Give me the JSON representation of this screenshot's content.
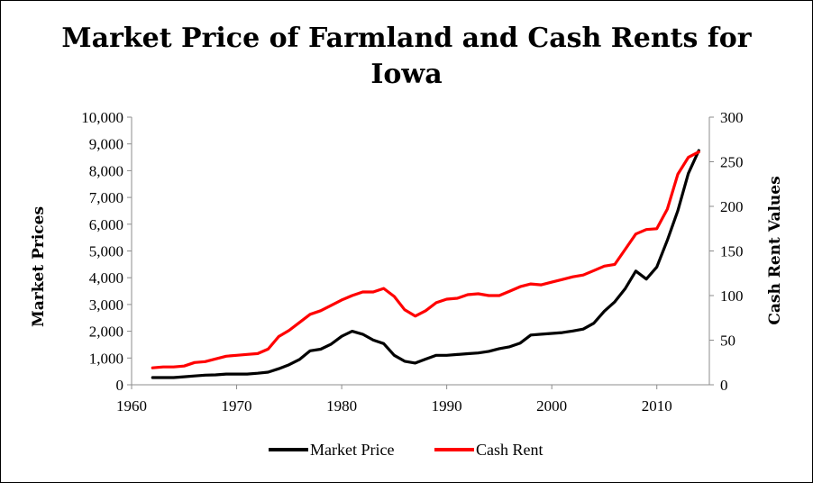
{
  "chart_data": {
    "type": "line",
    "title_line1": "Market Price of Farmland and Cash Rents for",
    "title_line2": "Iowa",
    "ylabel_left": "Market Prices",
    "ylabel_right": "Cash Rent Values",
    "xlim": [
      1960,
      2015
    ],
    "ylim_left": [
      0,
      10000
    ],
    "ylim_right": [
      0,
      300
    ],
    "x_ticks": [
      "1960",
      "1970",
      "1980",
      "1990",
      "2000",
      "2010"
    ],
    "y_left_ticks": [
      "0",
      "1,000",
      "2,000",
      "3,000",
      "4,000",
      "5,000",
      "6,000",
      "7,000",
      "8,000",
      "9,000",
      "10,000"
    ],
    "y_right_ticks": [
      "0",
      "50",
      "100",
      "150",
      "200",
      "250",
      "300"
    ],
    "legend_position": "bottom",
    "grid": false,
    "series": [
      {
        "name": "Market Price",
        "axis": "left",
        "color": "#000000",
        "x": [
          1962,
          1963,
          1964,
          1965,
          1966,
          1967,
          1968,
          1969,
          1970,
          1971,
          1972,
          1973,
          1974,
          1975,
          1976,
          1977,
          1978,
          1979,
          1980,
          1981,
          1982,
          1983,
          1984,
          1985,
          1986,
          1987,
          1988,
          1989,
          1990,
          1991,
          1992,
          1993,
          1994,
          1995,
          1996,
          1997,
          1998,
          1999,
          2000,
          2001,
          2002,
          2003,
          2004,
          2005,
          2006,
          2007,
          2008,
          2009,
          2010,
          2011,
          2012,
          2013,
          2014
        ],
        "y": [
          270,
          270,
          270,
          300,
          330,
          360,
          370,
          400,
          400,
          400,
          430,
          470,
          600,
          750,
          950,
          1270,
          1330,
          1520,
          1810,
          2000,
          1890,
          1670,
          1540,
          1100,
          880,
          810,
          960,
          1100,
          1100,
          1130,
          1160,
          1190,
          1250,
          1350,
          1420,
          1560,
          1860,
          1890,
          1920,
          1950,
          2010,
          2080,
          2300,
          2750,
          3100,
          3600,
          4250,
          3950,
          4400,
          5400,
          6500,
          7900,
          8750
        ]
      },
      {
        "name": "Cash Rent",
        "axis": "right",
        "color": "#ff0000",
        "x": [
          1962,
          1963,
          1964,
          1965,
          1966,
          1967,
          1968,
          1969,
          1970,
          1971,
          1972,
          1973,
          1974,
          1975,
          1976,
          1977,
          1978,
          1979,
          1980,
          1981,
          1982,
          1983,
          1984,
          1985,
          1986,
          1987,
          1988,
          1989,
          1990,
          1991,
          1992,
          1993,
          1994,
          1995,
          1996,
          1997,
          1998,
          1999,
          2000,
          2001,
          2002,
          2003,
          2004,
          2005,
          2006,
          2007,
          2008,
          2009,
          2010,
          2011,
          2012,
          2013,
          2014
        ],
        "y": [
          19,
          20,
          20,
          21,
          25,
          26,
          29,
          32,
          33,
          34,
          35,
          40,
          54,
          61,
          70,
          79,
          83,
          89,
          95,
          100,
          104,
          104,
          108,
          99,
          84,
          77,
          83,
          92,
          96,
          97,
          101,
          102,
          100,
          100,
          105,
          110,
          113,
          112,
          115,
          118,
          121,
          123,
          128,
          133,
          135,
          152,
          169,
          174,
          175,
          197,
          236,
          255,
          261
        ]
      }
    ]
  }
}
